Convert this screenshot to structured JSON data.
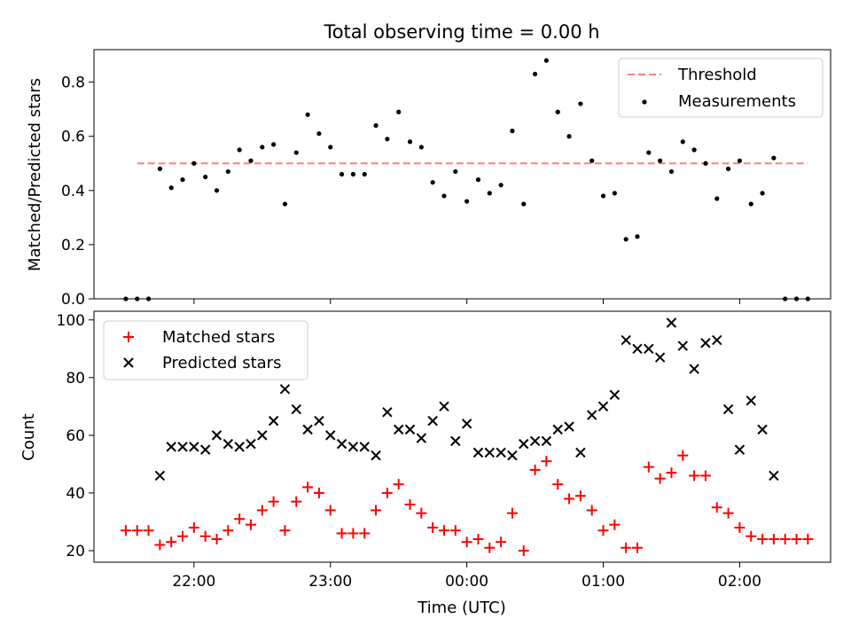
{
  "chart_data": [
    {
      "type": "scatter",
      "title": "Total observing time = 0.00 h",
      "xlabel": "",
      "ylabel": "Matched/Predicted stars",
      "ylim": [
        0,
        0.92
      ],
      "yticks": [
        0.0,
        0.2,
        0.4,
        0.6,
        0.8
      ],
      "ytick_labels": [
        "0.0",
        "0.2",
        "0.4",
        "0.6",
        "0.8"
      ],
      "legend_position": "top-right",
      "threshold": {
        "name": "Threshold",
        "value": 0.5,
        "x_range": [
          -25,
          270
        ],
        "color": "#ff7f7f"
      },
      "series": [
        {
          "name": "Measurements",
          "color": "#000000",
          "x": [
            -30,
            -25,
            -20,
            -15,
            -10,
            -5,
            0,
            5,
            10,
            15,
            20,
            25,
            30,
            35,
            40,
            45,
            50,
            55,
            60,
            65,
            70,
            75,
            80,
            85,
            90,
            95,
            100,
            105,
            110,
            115,
            120,
            125,
            130,
            135,
            140,
            145,
            150,
            155,
            160,
            165,
            170,
            175,
            180,
            185,
            190,
            195,
            200,
            205,
            210,
            215,
            220,
            225,
            230,
            235,
            240,
            245,
            250,
            255,
            260,
            265,
            270
          ],
          "y": [
            0,
            0,
            0,
            0.48,
            0.41,
            0.44,
            0.5,
            0.45,
            0.4,
            0.47,
            0.55,
            0.51,
            0.56,
            0.57,
            0.35,
            0.54,
            0.68,
            0.61,
            0.56,
            0.46,
            0.46,
            0.46,
            0.64,
            0.59,
            0.69,
            0.58,
            0.56,
            0.43,
            0.38,
            0.47,
            0.36,
            0.44,
            0.39,
            0.42,
            0.62,
            0.35,
            0.83,
            0.88,
            0.69,
            0.6,
            0.72,
            0.51,
            0.38,
            0.39,
            0.22,
            0.23,
            0.54,
            0.51,
            0.47,
            0.58,
            0.55,
            0.5,
            0.37,
            0.48,
            0.51,
            0.35,
            0.39,
            0.52,
            0,
            0,
            0
          ]
        }
      ]
    },
    {
      "type": "scatter",
      "title": "",
      "xlabel": "Time (UTC)",
      "ylabel": "Count",
      "ylim": [
        16,
        103
      ],
      "yticks": [
        20,
        40,
        60,
        80,
        100
      ],
      "ytick_labels": [
        "20",
        "40",
        "60",
        "80",
        "100"
      ],
      "xlim": [
        -44,
        280
      ],
      "xticks": [
        0,
        60,
        120,
        180,
        240
      ],
      "xtick_labels": [
        "22:00",
        "23:00",
        "00:00",
        "01:00",
        "02:00"
      ],
      "legend_position": "top-left",
      "series": [
        {
          "name": "Matched stars",
          "marker": "plus",
          "color": "#ff0000",
          "x": [
            -30,
            -25,
            -20,
            -15,
            -10,
            -5,
            0,
            5,
            10,
            15,
            20,
            25,
            30,
            35,
            40,
            45,
            50,
            55,
            60,
            65,
            70,
            75,
            80,
            85,
            90,
            95,
            100,
            105,
            110,
            115,
            120,
            125,
            130,
            135,
            140,
            145,
            150,
            155,
            160,
            165,
            170,
            175,
            180,
            185,
            190,
            195,
            200,
            205,
            210,
            215,
            220,
            225,
            230,
            235,
            240,
            245,
            250,
            255,
            260,
            265,
            270
          ],
          "y": [
            27,
            27,
            27,
            22,
            23,
            25,
            28,
            25,
            24,
            27,
            31,
            29,
            34,
            37,
            27,
            37,
            42,
            40,
            34,
            26,
            26,
            26,
            34,
            40,
            43,
            36,
            33,
            28,
            27,
            27,
            23,
            24,
            21,
            23,
            33,
            20,
            48,
            51,
            43,
            38,
            39,
            34,
            27,
            29,
            21,
            21,
            49,
            45,
            47,
            53,
            46,
            46,
            35,
            33,
            28,
            25,
            24,
            24,
            24,
            24,
            24
          ]
        },
        {
          "name": "Predicted stars",
          "marker": "x",
          "color": "#000000",
          "x": [
            -15,
            -10,
            -5,
            0,
            5,
            10,
            15,
            20,
            25,
            30,
            35,
            40,
            45,
            50,
            55,
            60,
            65,
            70,
            75,
            80,
            85,
            90,
            95,
            100,
            105,
            110,
            115,
            120,
            125,
            130,
            135,
            140,
            145,
            150,
            155,
            160,
            165,
            170,
            175,
            180,
            185,
            190,
            195,
            200,
            205,
            210,
            215,
            220,
            225,
            230,
            235,
            240,
            245,
            250,
            255
          ],
          "y": [
            46,
            56,
            56,
            56,
            55,
            60,
            57,
            56,
            57,
            60,
            65,
            76,
            69,
            62,
            65,
            60,
            57,
            56,
            56,
            53,
            68,
            62,
            62,
            59,
            65,
            70,
            58,
            64,
            54,
            54,
            54,
            53,
            57,
            58,
            58,
            62,
            63,
            54,
            67,
            70,
            74,
            93,
            90,
            90,
            87,
            99,
            91,
            83,
            92,
            93,
            69,
            55,
            72,
            62,
            46
          ]
        }
      ]
    }
  ]
}
